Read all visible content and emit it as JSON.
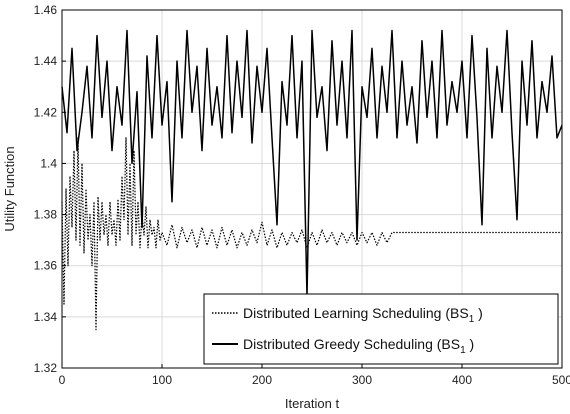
{
  "chart_data": {
    "type": "line",
    "xlabel": "Iteration t",
    "ylabel": "Utility Function",
    "xlim": [
      0,
      500
    ],
    "ylim": [
      1.32,
      1.46
    ],
    "x_ticks": [
      0,
      100,
      200,
      300,
      400,
      500
    ],
    "y_ticks": [
      1.32,
      1.34,
      1.36,
      1.38,
      1.4,
      1.42,
      1.44,
      1.46
    ],
    "y_tick_labels": [
      "1.32",
      "1.34",
      "1.36",
      "1.38",
      "1.4",
      "1.42",
      "1.44",
      "1.46"
    ],
    "grid": true,
    "legend_position": "bottom-right",
    "series": [
      {
        "name": "Distributed Learning Scheduling (BS1 )",
        "legend_main": "Distributed Learning Scheduling (BS",
        "legend_sub": "1",
        "legend_tail": " )",
        "style": "dotted",
        "color": "#000000",
        "x": [
          0,
          2,
          4,
          6,
          8,
          10,
          12,
          14,
          16,
          18,
          20,
          22,
          24,
          26,
          28,
          30,
          32,
          34,
          36,
          38,
          40,
          42,
          44,
          46,
          48,
          50,
          52,
          54,
          56,
          58,
          60,
          62,
          64,
          66,
          68,
          70,
          72,
          74,
          76,
          78,
          80,
          82,
          84,
          86,
          88,
          90,
          92,
          94,
          96,
          98,
          100,
          105,
          110,
          115,
          120,
          125,
          130,
          135,
          140,
          145,
          150,
          155,
          160,
          165,
          170,
          175,
          180,
          185,
          190,
          195,
          200,
          205,
          210,
          215,
          220,
          225,
          230,
          235,
          240,
          245,
          250,
          255,
          260,
          265,
          270,
          275,
          280,
          285,
          290,
          295,
          300,
          305,
          310,
          315,
          320,
          325,
          330,
          400,
          500
        ],
        "y": [
          1.385,
          1.345,
          1.39,
          1.36,
          1.395,
          1.375,
          1.405,
          1.37,
          1.41,
          1.368,
          1.4,
          1.365,
          1.39,
          1.37,
          1.38,
          1.36,
          1.385,
          1.335,
          1.387,
          1.37,
          1.385,
          1.372,
          1.38,
          1.368,
          1.385,
          1.372,
          1.378,
          1.368,
          1.386,
          1.37,
          1.395,
          1.378,
          1.41,
          1.372,
          1.4,
          1.368,
          1.405,
          1.372,
          1.385,
          1.367,
          1.38,
          1.372,
          1.383,
          1.367,
          1.378,
          1.372,
          1.375,
          1.367,
          1.378,
          1.37,
          1.373,
          1.368,
          1.376,
          1.367,
          1.375,
          1.369,
          1.374,
          1.367,
          1.375,
          1.368,
          1.374,
          1.367,
          1.375,
          1.368,
          1.374,
          1.367,
          1.373,
          1.368,
          1.374,
          1.369,
          1.377,
          1.368,
          1.374,
          1.367,
          1.373,
          1.368,
          1.373,
          1.369,
          1.374,
          1.367,
          1.373,
          1.368,
          1.374,
          1.369,
          1.373,
          1.368,
          1.373,
          1.369,
          1.373,
          1.368,
          1.373,
          1.369,
          1.373,
          1.368,
          1.373,
          1.369,
          1.373,
          1.373,
          1.373
        ]
      },
      {
        "name": "Distributed Greedy Scheduling (BS1 )",
        "legend_main": "Distributed Greedy Scheduling (BS",
        "legend_sub": "1",
        "legend_tail": " )",
        "style": "solid",
        "color": "#000000",
        "x": [
          0,
          5,
          10,
          15,
          20,
          25,
          30,
          35,
          40,
          45,
          50,
          55,
          60,
          65,
          70,
          75,
          80,
          85,
          90,
          95,
          100,
          105,
          110,
          115,
          120,
          125,
          130,
          135,
          140,
          145,
          150,
          155,
          160,
          165,
          170,
          175,
          180,
          185,
          190,
          195,
          200,
          205,
          210,
          215,
          220,
          225,
          230,
          235,
          240,
          245,
          250,
          255,
          260,
          265,
          270,
          275,
          280,
          285,
          290,
          295,
          300,
          305,
          310,
          315,
          320,
          325,
          330,
          335,
          340,
          345,
          350,
          355,
          360,
          365,
          370,
          375,
          380,
          385,
          390,
          395,
          400,
          405,
          410,
          415,
          420,
          425,
          430,
          435,
          440,
          445,
          450,
          455,
          460,
          465,
          470,
          475,
          480,
          485,
          490,
          495,
          500
        ],
        "y": [
          1.43,
          1.412,
          1.445,
          1.405,
          1.42,
          1.438,
          1.41,
          1.45,
          1.418,
          1.44,
          1.405,
          1.43,
          1.415,
          1.452,
          1.4,
          1.428,
          1.375,
          1.442,
          1.41,
          1.45,
          1.415,
          1.432,
          1.385,
          1.44,
          1.41,
          1.452,
          1.42,
          1.438,
          1.405,
          1.445,
          1.415,
          1.43,
          1.41,
          1.45,
          1.412,
          1.44,
          1.418,
          1.452,
          1.408,
          1.438,
          1.42,
          1.445,
          1.41,
          1.376,
          1.432,
          1.415,
          1.45,
          1.41,
          1.44,
          1.348,
          1.452,
          1.418,
          1.43,
          1.405,
          1.448,
          1.415,
          1.44,
          1.41,
          1.452,
          1.37,
          1.43,
          1.418,
          1.445,
          1.41,
          1.438,
          1.42,
          1.452,
          1.41,
          1.44,
          1.415,
          1.43,
          1.408,
          1.448,
          1.418,
          1.44,
          1.41,
          1.452,
          1.415,
          1.432,
          1.42,
          1.44,
          1.41,
          1.45,
          1.418,
          1.376,
          1.445,
          1.41,
          1.438,
          1.42,
          1.452,
          1.412,
          1.378,
          1.44,
          1.415,
          1.448,
          1.41,
          1.432,
          1.42,
          1.442,
          1.41,
          1.415
        ]
      }
    ]
  }
}
